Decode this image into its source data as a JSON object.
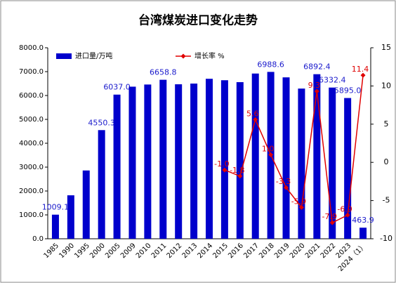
{
  "chart_data": {
    "type": "bar",
    "title": "台湾煤炭进口变化走势",
    "categories": [
      "1985",
      "1990",
      "1995",
      "2000",
      "2005",
      "2009",
      "2010",
      "2011",
      "2012",
      "2013",
      "2014",
      "2015",
      "2016",
      "2017",
      "2018",
      "2019",
      "2020",
      "2021",
      "2022",
      "2023",
      "2024（1）"
    ],
    "series": [
      {
        "name": "进口量/万吨",
        "type": "bar",
        "color": "#0000cc",
        "values": [
          1009.1,
          1820,
          2860,
          4550.3,
          6037.0,
          6370,
          6460,
          6658.8,
          6470,
          6500,
          6700,
          6640,
          6560,
          6920,
          6988.6,
          6760,
          6290,
          6892.4,
          6332.4,
          5895.0,
          463.9
        ],
        "value_labels": [
          "1009.1",
          null,
          null,
          "4550.3",
          "6037.0",
          null,
          null,
          "6658.8",
          null,
          null,
          null,
          null,
          null,
          null,
          "6988.6",
          null,
          null,
          "6892.4",
          "6332.4",
          "5895.0",
          "463.9"
        ]
      },
      {
        "name": "增长率 %",
        "type": "line",
        "axis": "y2",
        "color": "#e00000",
        "values": [
          null,
          null,
          null,
          null,
          null,
          null,
          null,
          null,
          null,
          null,
          null,
          -1.0,
          -1.8,
          5.6,
          1.0,
          -3.3,
          -5.9,
          9.3,
          -7.9,
          -6.9,
          11.4
        ],
        "value_labels": [
          null,
          null,
          null,
          null,
          null,
          null,
          null,
          null,
          null,
          null,
          null,
          "-1.0",
          "-1.8",
          "5.6",
          "1.0",
          "-3.3",
          "-5.9",
          "9.3",
          "-7.9",
          "-6.9",
          "11.4"
        ]
      }
    ],
    "ylim": [
      0,
      8000
    ],
    "yticks": [
      {
        "value": 0,
        "label": "0.0"
      },
      {
        "value": 1000,
        "label": "1000.0"
      },
      {
        "value": 2000,
        "label": "2000.0"
      },
      {
        "value": 3000,
        "label": "3000.0"
      },
      {
        "value": 4000,
        "label": "4000.0"
      },
      {
        "value": 5000,
        "label": "5000.0"
      },
      {
        "value": 6000,
        "label": "6000.0"
      },
      {
        "value": 7000,
        "label": "7000.0"
      },
      {
        "value": 8000,
        "label": "8000.0"
      }
    ],
    "y2lim": [
      -10,
      15
    ],
    "y2ticks": [
      -10,
      -5,
      0,
      5,
      10,
      15
    ],
    "legend": "top-left"
  }
}
